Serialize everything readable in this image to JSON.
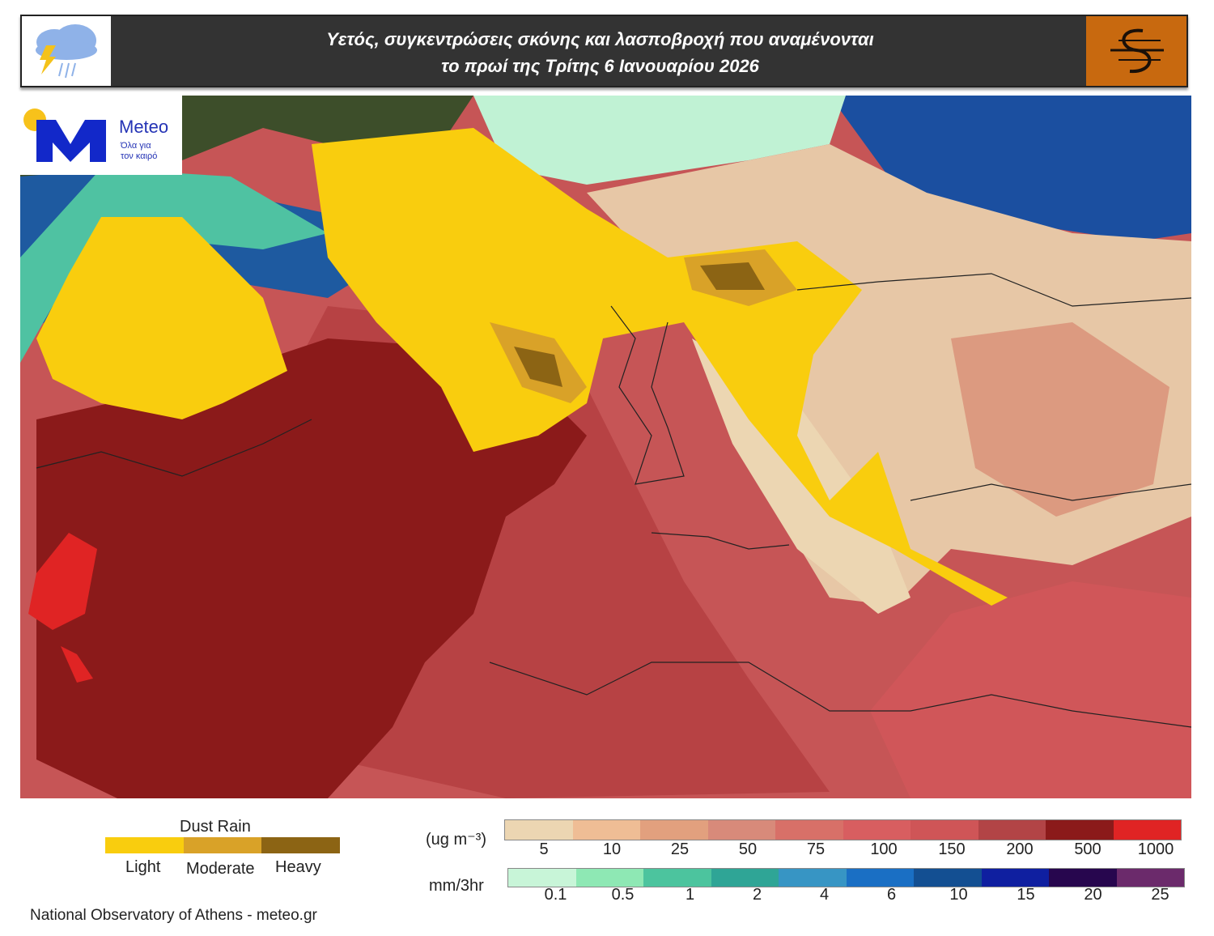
{
  "header": {
    "title_line1": "Υετός, συγκεντρώσεις σκόνης και λασποβροχή που αναμένονται",
    "title_line2": "το πρωί της Τρίτης 6 Ιανουαρίου 2026"
  },
  "logo": {
    "text": "Meteo",
    "tagline_1": "Όλα για",
    "tagline_2": "τον καιρό"
  },
  "dust_rain_legend": {
    "title": "Dust Rain",
    "labels": [
      "Light",
      "Moderate",
      "Heavy"
    ],
    "colors": [
      "#f9cd0e",
      "#d9a228",
      "#8c6414"
    ]
  },
  "dust_conc_legend": {
    "unit": "(ug m⁻³)",
    "labels": [
      "5",
      "10",
      "25",
      "50",
      "75",
      "100",
      "150",
      "200",
      "500",
      "1000"
    ],
    "colors": [
      "#ecd6b2",
      "#efbd95",
      "#e2a07e",
      "#d88a7a",
      "#d87068",
      "#d85e60",
      "#cf5557",
      "#b24446",
      "#8b1a1a",
      "#e02424"
    ]
  },
  "precip_legend": {
    "unit": "mm/3hr",
    "labels": [
      "0.1",
      "0.5",
      "1",
      "2",
      "4",
      "6",
      "10",
      "15",
      "20",
      "25"
    ],
    "colors": [
      "#c8f5d8",
      "#8ee8b4",
      "#4cc49e",
      "#2fa596",
      "#3795c4",
      "#1a6fc4",
      "#134f92",
      "#0f1fa0",
      "#27064e",
      "#6b2a6b"
    ]
  },
  "credit": "National Observatory of Athens - meteo.gr"
}
